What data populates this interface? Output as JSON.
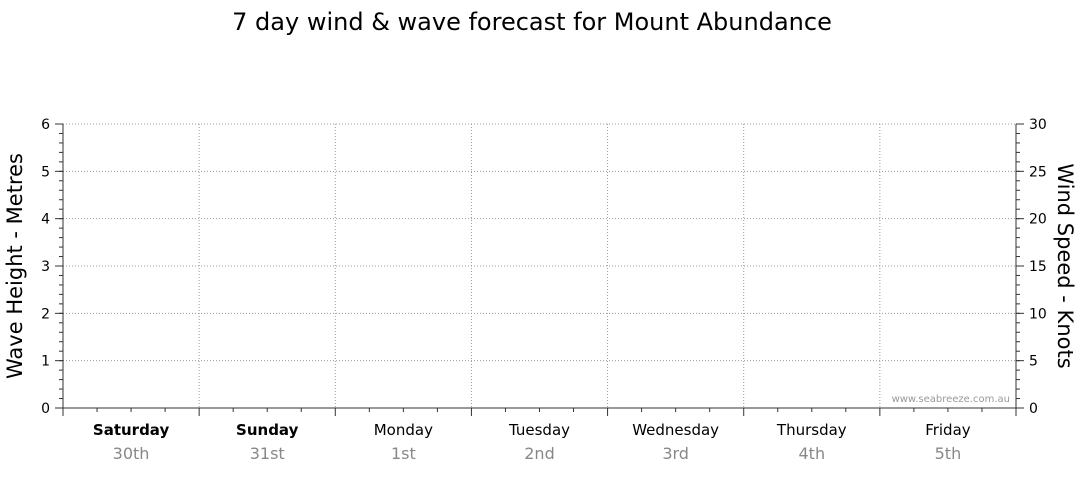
{
  "chart_data": {
    "type": "line",
    "title": "7 day wind & wave forecast for Mount Abundance",
    "ylabel_left": "Wave Height - Metres",
    "ylabel_right": "Wind Speed - Knots",
    "ylim_left": [
      0,
      6
    ],
    "ylim_right": [
      0,
      30
    ],
    "yticks_left": [
      "0",
      "1",
      "2",
      "3",
      "4",
      "5",
      "6"
    ],
    "yticks_right": [
      "0",
      "5",
      "10",
      "15",
      "20",
      "25",
      "30"
    ],
    "grid": true,
    "days": [
      {
        "day": "Saturday",
        "date": "30th",
        "bold": true
      },
      {
        "day": "Sunday",
        "date": "31st",
        "bold": true
      },
      {
        "day": "Monday",
        "date": "1st",
        "bold": false
      },
      {
        "day": "Tuesday",
        "date": "2nd",
        "bold": false
      },
      {
        "day": "Wednesday",
        "date": "3rd",
        "bold": false
      },
      {
        "day": "Thursday",
        "date": "4th",
        "bold": false
      },
      {
        "day": "Friday",
        "date": "5th",
        "bold": false
      }
    ],
    "series": [],
    "watermark": "www.seabreeze.com.au"
  }
}
